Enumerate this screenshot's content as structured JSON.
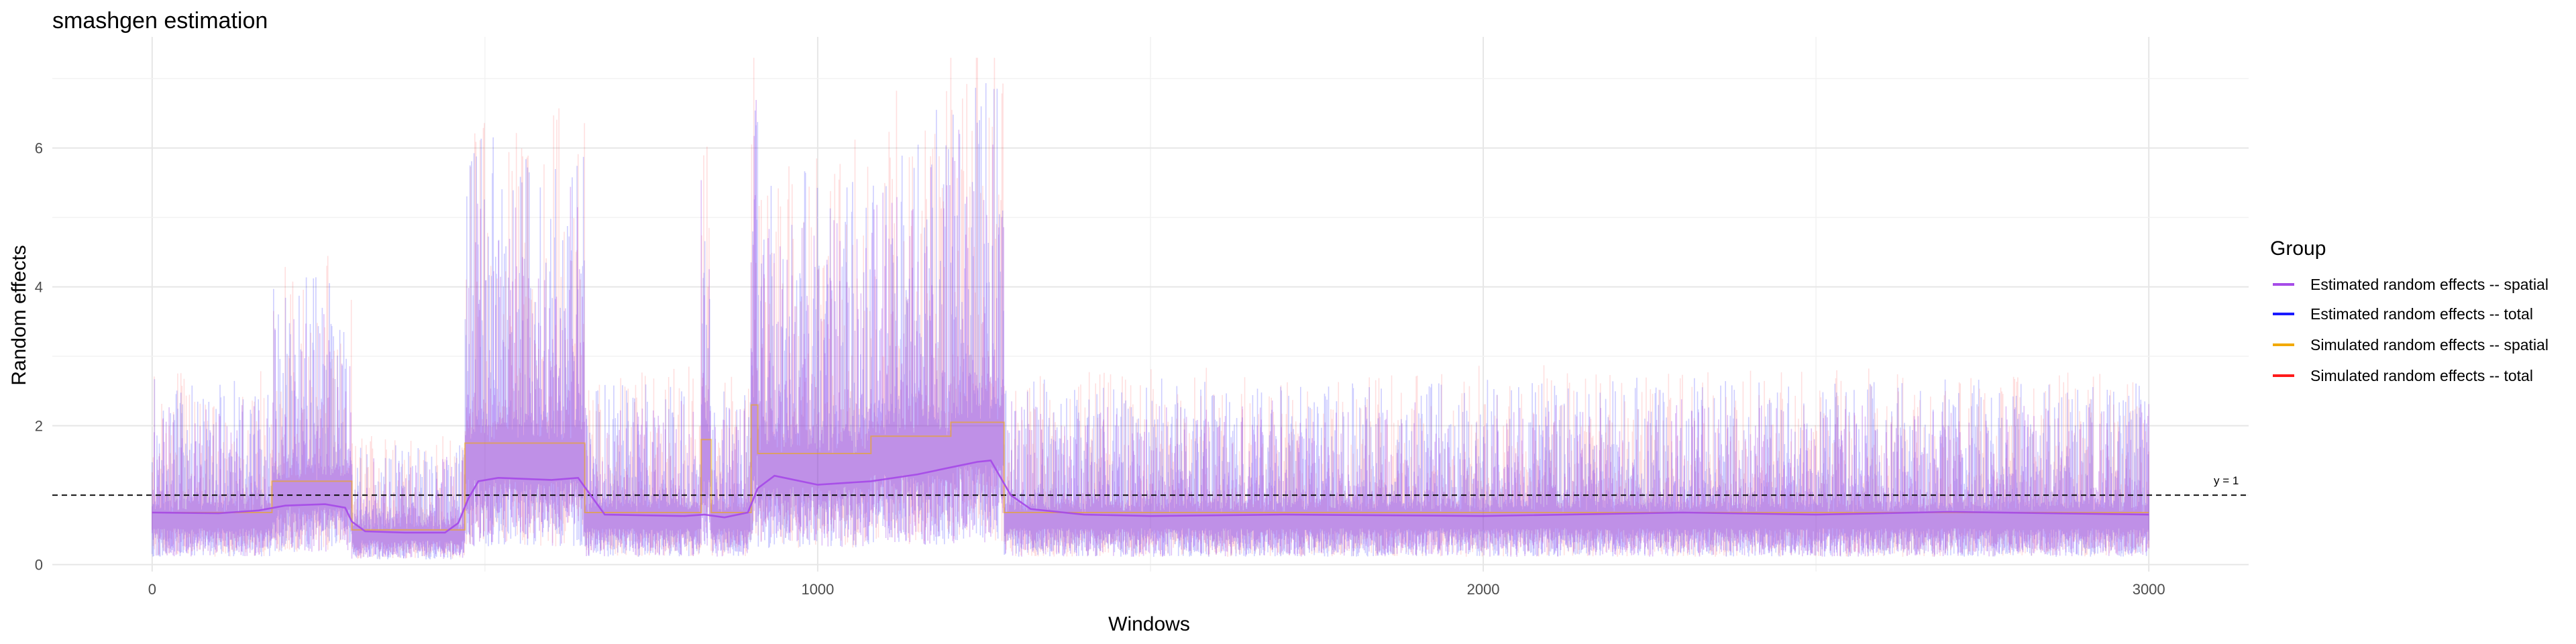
{
  "chart_data": {
    "type": "line",
    "title": "smashgen estimation",
    "xlabel": "Windows",
    "ylabel": "Random effects",
    "xlim": [
      -150,
      3150
    ],
    "ylim": [
      -0.1,
      7.6
    ],
    "x_ticks": [
      0,
      1000,
      2000,
      3000
    ],
    "y_ticks": [
      0,
      2,
      4,
      6
    ],
    "grid": true,
    "legend": {
      "title": "Group",
      "position": "right",
      "entries": [
        {
          "label": "Estimated random effects -- spatial",
          "color": "#a64ce8"
        },
        {
          "label": "Estimated random effects -- total",
          "color": "#1a1aff"
        },
        {
          "label": "Simulated random effects -- spatial",
          "color": "#f2a900"
        },
        {
          "label": "Simulated random effects -- total",
          "color": "#ff1a1a"
        }
      ]
    },
    "reference_line": {
      "y": 1,
      "label": "y = 1",
      "style": "dashed"
    },
    "series": [
      {
        "name": "Simulated random effects -- spatial",
        "x": [
          0,
          180,
          180,
          300,
          300,
          470,
          470,
          650,
          650,
          825,
          825,
          840,
          840,
          900,
          900,
          910,
          910,
          1080,
          1080,
          1200,
          1200,
          1280,
          1280,
          3000
        ],
        "y": [
          0.75,
          0.75,
          1.2,
          1.2,
          0.5,
          0.5,
          1.75,
          1.75,
          0.75,
          0.75,
          1.8,
          1.8,
          0.75,
          0.75,
          2.3,
          2.3,
          1.6,
          1.6,
          1.85,
          1.85,
          2.05,
          2.05,
          0.75,
          0.75
        ]
      },
      {
        "name": "Estimated random effects -- spatial",
        "x": [
          0,
          100,
          160,
          200,
          260,
          290,
          300,
          320,
          380,
          440,
          460,
          475,
          490,
          520,
          600,
          640,
          655,
          680,
          800,
          830,
          860,
          895,
          910,
          935,
          1000,
          1080,
          1150,
          1200,
          1240,
          1260,
          1290,
          1320,
          1400,
          1500,
          1700,
          2000,
          2300,
          2500,
          2700,
          3000
        ],
        "y": [
          0.75,
          0.74,
          0.78,
          0.85,
          0.87,
          0.82,
          0.62,
          0.48,
          0.46,
          0.46,
          0.6,
          0.95,
          1.2,
          1.25,
          1.22,
          1.25,
          1.05,
          0.72,
          0.7,
          0.72,
          0.68,
          0.75,
          1.1,
          1.28,
          1.15,
          1.2,
          1.3,
          1.4,
          1.48,
          1.5,
          1.0,
          0.8,
          0.72,
          0.7,
          0.72,
          0.7,
          0.75,
          0.72,
          0.76,
          0.72
        ]
      },
      {
        "name": "Estimated random effects -- total",
        "noisy": true,
        "segments": [
          [
            0,
            180,
            0.75
          ],
          [
            180,
            300,
            1.2
          ],
          [
            300,
            470,
            0.5
          ],
          [
            470,
            650,
            1.75
          ],
          [
            650,
            825,
            0.75
          ],
          [
            825,
            840,
            1.8
          ],
          [
            840,
            900,
            0.75
          ],
          [
            900,
            910,
            2.3
          ],
          [
            910,
            1080,
            1.6
          ],
          [
            1080,
            1200,
            1.85
          ],
          [
            1200,
            1280,
            2.05
          ],
          [
            1280,
            3000,
            0.75
          ]
        ]
      },
      {
        "name": "Simulated random effects -- total",
        "noisy": true,
        "segments": [
          [
            0,
            180,
            0.75
          ],
          [
            180,
            300,
            1.2
          ],
          [
            300,
            470,
            0.5
          ],
          [
            470,
            650,
            1.75
          ],
          [
            650,
            825,
            0.75
          ],
          [
            825,
            840,
            1.8
          ],
          [
            840,
            900,
            0.75
          ],
          [
            900,
            910,
            2.3
          ],
          [
            910,
            1080,
            1.6
          ],
          [
            1080,
            1200,
            1.85
          ],
          [
            1200,
            1280,
            2.05
          ],
          [
            1280,
            3000,
            0.75
          ]
        ]
      }
    ]
  }
}
